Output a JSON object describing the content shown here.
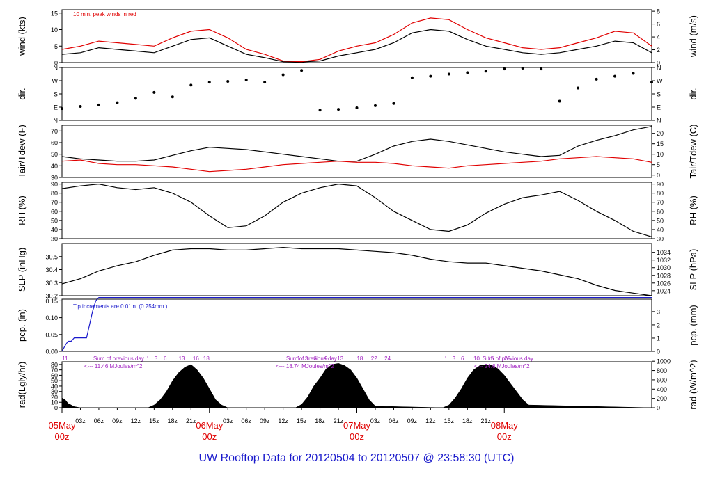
{
  "footer_title": "UW Rooftop Data for 20120504  to  20120507 @ 23:58:30  (UTC)",
  "colors": {
    "axis": "#000000",
    "series": "#000000",
    "peak": "#e00000",
    "dew": "#e00000",
    "precip": "#1a1acc",
    "note_red": "#e00000",
    "note_purple": "#a020c0",
    "date_red": "#e00000",
    "title_blue": "#1a1acc"
  },
  "chart_data": [
    {
      "id": "wind",
      "type": "line",
      "ylabel": "wind (kts)",
      "ylabel_right": "wind (m/s)",
      "ylim": [
        0,
        16
      ],
      "yticks": [
        0,
        5,
        10,
        15
      ],
      "right_ylim": [
        0,
        8.23
      ],
      "right_yticks": [
        0,
        2,
        4,
        6,
        8
      ],
      "annotation": "10 min. peak winds in red",
      "series": [
        {
          "name": "",
          "x": [
            0,
            3,
            6,
            9,
            12,
            15,
            18,
            21,
            24,
            27,
            30,
            33,
            36,
            39,
            42,
            45,
            48,
            51,
            54,
            57,
            60,
            63,
            66,
            69,
            72,
            75,
            78,
            81,
            84,
            87,
            90,
            93,
            96
          ],
          "values": [
            2.5,
            3,
            4.5,
            4,
            3.5,
            3,
            5,
            7,
            7.5,
            5,
            2.5,
            1.5,
            0.3,
            0.2,
            0.5,
            2,
            3,
            4,
            6,
            9,
            10,
            9.5,
            7,
            5,
            4,
            3,
            2.5,
            3,
            4,
            5,
            6.5,
            6,
            3
          ]
        },
        {
          "name": "",
          "x": [
            0,
            3,
            6,
            9,
            12,
            15,
            18,
            21,
            24,
            27,
            30,
            33,
            36,
            39,
            42,
            45,
            48,
            51,
            54,
            57,
            60,
            63,
            66,
            69,
            72,
            75,
            78,
            81,
            84,
            87,
            90,
            93,
            96
          ],
          "values": [
            4,
            5,
            6.5,
            6,
            5.5,
            5,
            7.5,
            9.5,
            10,
            7.5,
            4,
            2.5,
            0.5,
            0.3,
            1,
            3.5,
            5,
            6,
            8.5,
            12,
            13.5,
            13,
            10,
            7.5,
            6,
            4.5,
            4,
            4.5,
            6,
            7.5,
            9.5,
            9,
            5
          ]
        }
      ]
    },
    {
      "id": "dir",
      "type": "scatter",
      "ylabel": "dir.",
      "ylabel_right": "dir.",
      "ylim": [
        0,
        360
      ],
      "ytick_values": [
        0,
        90,
        180,
        270,
        360
      ],
      "ytick_labels": [
        "N",
        "E",
        "S",
        "W",
        "N"
      ],
      "x": [
        0,
        3,
        6,
        9,
        12,
        15,
        18,
        21,
        24,
        27,
        30,
        33,
        36,
        39,
        42,
        45,
        48,
        51,
        54,
        57,
        60,
        63,
        66,
        69,
        72,
        75,
        78,
        81,
        84,
        87,
        90,
        93,
        96
      ],
      "values": [
        80,
        95,
        105,
        120,
        150,
        190,
        160,
        240,
        260,
        265,
        275,
        260,
        310,
        340,
        70,
        75,
        85,
        100,
        115,
        290,
        300,
        315,
        325,
        335,
        350,
        355,
        350,
        130,
        220,
        280,
        300,
        320,
        260
      ]
    },
    {
      "id": "temp",
      "type": "line",
      "ylabel": "Tair/Tdew (F)",
      "ylabel_right": "Tair/Tdew (C)",
      "ylim": [
        30,
        75
      ],
      "yticks": [
        30,
        40,
        50,
        60,
        70
      ],
      "right_ylim": [
        -1.1,
        23.9
      ],
      "right_yticks": [
        0,
        5,
        10,
        15,
        20
      ],
      "series": [
        {
          "name": "",
          "x": [
            0,
            3,
            6,
            9,
            12,
            15,
            18,
            21,
            24,
            27,
            30,
            33,
            36,
            39,
            42,
            45,
            48,
            51,
            54,
            57,
            60,
            63,
            66,
            69,
            72,
            75,
            78,
            81,
            84,
            87,
            90,
            93,
            96
          ],
          "values": [
            48,
            46,
            45,
            44,
            44,
            45,
            49,
            53,
            56,
            55,
            54,
            52,
            50,
            48,
            46,
            44,
            44,
            50,
            57,
            61,
            63,
            61,
            58,
            55,
            52,
            50,
            48,
            49,
            57,
            62,
            66,
            71,
            74
          ]
        },
        {
          "name": "",
          "x": [
            0,
            3,
            6,
            9,
            12,
            15,
            18,
            21,
            24,
            27,
            30,
            33,
            36,
            39,
            42,
            45,
            48,
            51,
            54,
            57,
            60,
            63,
            66,
            69,
            72,
            75,
            78,
            81,
            84,
            87,
            90,
            93,
            96
          ],
          "values": [
            44,
            45,
            42,
            41,
            41,
            40,
            39,
            37,
            35,
            36,
            37,
            39,
            41,
            42,
            43,
            44,
            43,
            43,
            42,
            40,
            39,
            38,
            40,
            41,
            42,
            43,
            44,
            46,
            47,
            48,
            47,
            46,
            43
          ]
        }
      ]
    },
    {
      "id": "rh",
      "type": "line",
      "ylabel": "RH (%)",
      "ylabel_right": "RH (%)",
      "ylim": [
        30,
        92
      ],
      "yticks": [
        30,
        40,
        50,
        60,
        70,
        80,
        90
      ],
      "series": [
        {
          "name": "",
          "x": [
            0,
            3,
            6,
            9,
            12,
            15,
            18,
            21,
            24,
            27,
            30,
            33,
            36,
            39,
            42,
            45,
            48,
            51,
            54,
            57,
            60,
            63,
            66,
            69,
            72,
            75,
            78,
            81,
            84,
            87,
            90,
            93,
            96
          ],
          "values": [
            85,
            88,
            90,
            86,
            84,
            86,
            80,
            70,
            55,
            42,
            44,
            55,
            70,
            80,
            86,
            90,
            88,
            75,
            60,
            50,
            40,
            38,
            45,
            58,
            68,
            75,
            78,
            82,
            72,
            60,
            50,
            38,
            32
          ]
        }
      ]
    },
    {
      "id": "slp",
      "type": "line",
      "ylabel": "SLP (inHg)",
      "ylabel_right": "SLP (hPa)",
      "ylim": [
        30.2,
        30.6
      ],
      "yticks": [
        30.2,
        30.3,
        30.4,
        30.5
      ],
      "right_ylim": [
        1022.7,
        1036.3
      ],
      "right_yticks": [
        1024,
        1026,
        1028,
        1030,
        1032,
        1034
      ],
      "series": [
        {
          "name": "",
          "x": [
            0,
            3,
            6,
            9,
            12,
            15,
            18,
            21,
            24,
            27,
            30,
            33,
            36,
            39,
            42,
            45,
            48,
            51,
            54,
            57,
            60,
            63,
            66,
            69,
            72,
            75,
            78,
            81,
            84,
            87,
            90,
            93,
            96
          ],
          "values": [
            30.29,
            30.33,
            30.39,
            30.43,
            30.46,
            30.51,
            30.55,
            30.56,
            30.56,
            30.55,
            30.55,
            30.56,
            30.57,
            30.56,
            30.56,
            30.56,
            30.55,
            30.54,
            30.53,
            30.51,
            30.48,
            30.46,
            30.45,
            30.45,
            30.43,
            30.41,
            30.39,
            30.36,
            30.33,
            30.28,
            30.24,
            30.22,
            30.2
          ]
        }
      ]
    },
    {
      "id": "pcp",
      "type": "line",
      "ylabel": "pcp. (in)",
      "ylabel_right": "pcp. (mm)",
      "ylim": [
        0,
        0.155
      ],
      "yticks": [
        0.0,
        0.05,
        0.1,
        0.15
      ],
      "ytick_labels": [
        "0.00",
        "0.05",
        "0.10",
        "0.15"
      ],
      "right_ylim": [
        0,
        3.94
      ],
      "right_yticks": [
        0,
        1,
        2,
        3
      ],
      "annotation": "Tip increments are 0.01in. (0.254mm.)",
      "series": [
        {
          "name": "",
          "x": [
            0,
            0.3,
            0.6,
            1,
            1.5,
            2,
            3,
            4,
            5,
            5.5,
            6,
            96
          ],
          "values": [
            0.0,
            0.01,
            0.02,
            0.03,
            0.03,
            0.04,
            0.04,
            0.04,
            0.12,
            0.15,
            0.16,
            0.16
          ]
        }
      ]
    },
    {
      "id": "rad",
      "type": "area",
      "ylabel": "rad(Lgly/hr)",
      "ylabel_right": "rad (W/m^2)",
      "ylim": [
        0,
        85
      ],
      "yticks": [
        0,
        10,
        20,
        30,
        40,
        50,
        60,
        70,
        80
      ],
      "right_ylim": [
        0,
        988
      ],
      "right_yticks": [
        0,
        200,
        400,
        600,
        800,
        1000
      ],
      "x": [
        0,
        0.5,
        1,
        2,
        3,
        14,
        15,
        16,
        17,
        18,
        19,
        20,
        21,
        22,
        23,
        24,
        25,
        26,
        27,
        38,
        39,
        40,
        41,
        42,
        43,
        44,
        45,
        46,
        47,
        48,
        49,
        50,
        51,
        62,
        63,
        64,
        65,
        66,
        67,
        68,
        69,
        70,
        71,
        72,
        73,
        74,
        75,
        76,
        96
      ],
      "values": [
        18,
        15,
        8,
        2,
        0,
        0,
        5,
        15,
        30,
        50,
        65,
        75,
        80,
        70,
        55,
        35,
        15,
        5,
        0,
        0,
        6,
        20,
        40,
        55,
        72,
        80,
        82,
        78,
        70,
        55,
        35,
        15,
        3,
        0,
        5,
        18,
        35,
        55,
        70,
        78,
        80,
        78,
        72,
        60,
        45,
        30,
        15,
        5,
        0
      ],
      "hour_labels_top": [
        "11",
        "1",
        "3",
        "6",
        "13",
        "16",
        "18",
        "1",
        "3",
        "6",
        "9",
        "13",
        "18",
        "22",
        "24",
        "1",
        "3",
        "6",
        "10",
        "15",
        "20"
      ],
      "notes": [
        {
          "line1": "Sum of previous day",
          "line2": "<--- 11.46 MJoules/m^2"
        },
        {
          "line1": "Sum of previous day",
          "line2": "<--- 18.74 MJoules/m^2"
        },
        {
          "line1": "Sum of previous day",
          "line2": "<--- 24.6 MJoules/m^2"
        }
      ]
    }
  ],
  "x_axis": {
    "range_hours": [
      0,
      96
    ],
    "hour_ticks": [
      "03z",
      "06z",
      "09z",
      "12z",
      "15z",
      "18z",
      "21z",
      "03z",
      "06z",
      "09z",
      "12z",
      "15z",
      "18z",
      "21z",
      "03z",
      "06z",
      "09z",
      "12z",
      "15z",
      "18z",
      "21z"
    ],
    "day_labels": [
      {
        "date": "05May",
        "time": "00z"
      },
      {
        "date": "06May",
        "time": "00z"
      },
      {
        "date": "07May",
        "time": "00z"
      },
      {
        "date": "08May",
        "time": "00z"
      }
    ]
  }
}
